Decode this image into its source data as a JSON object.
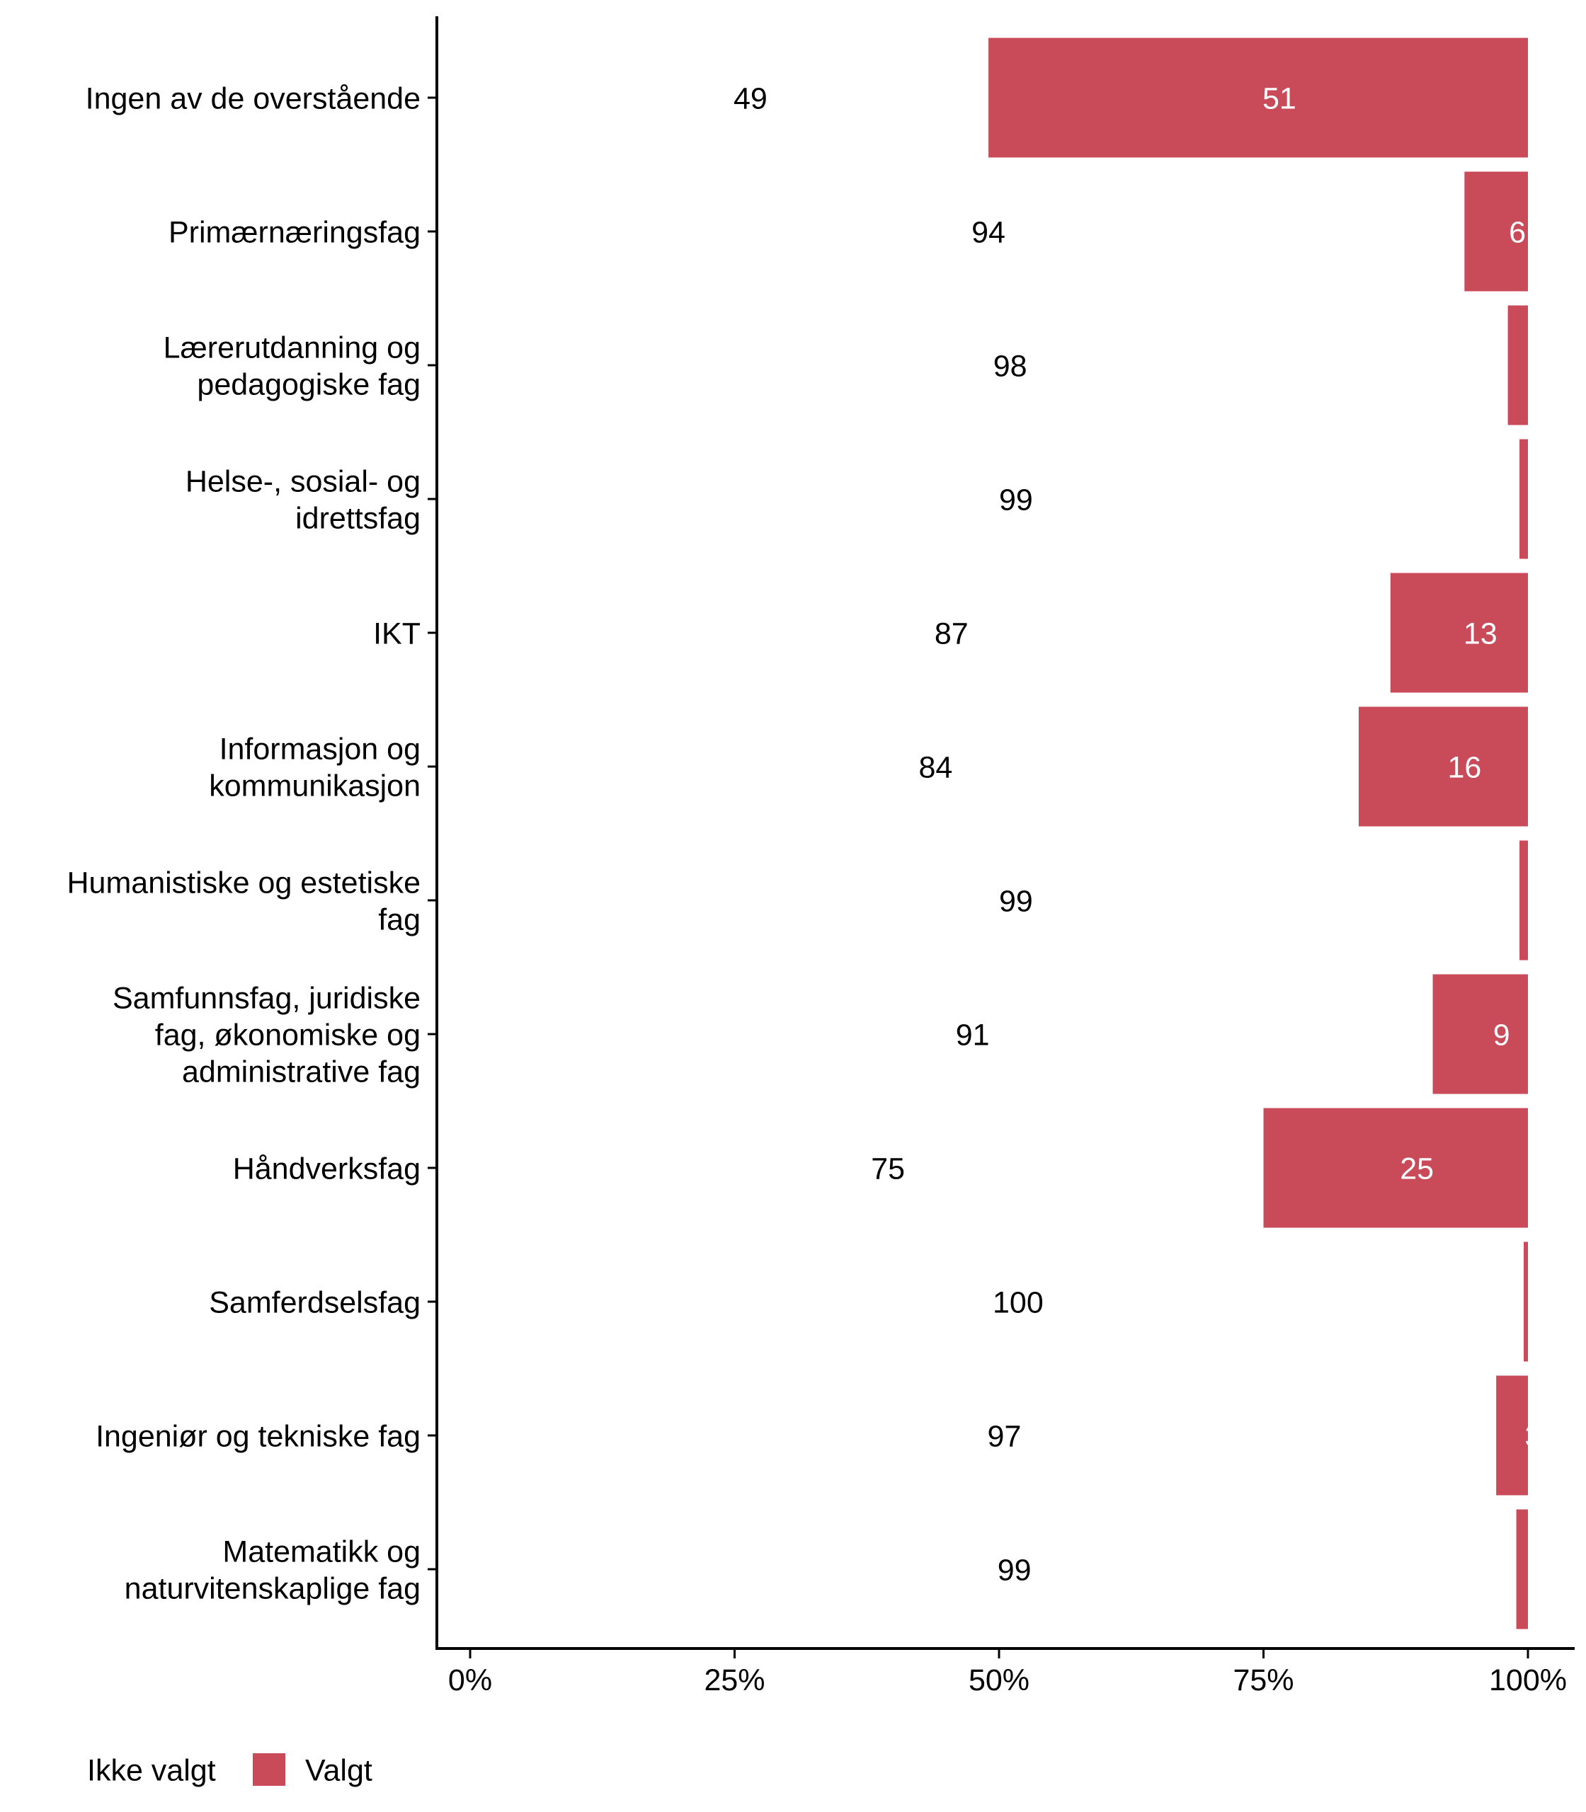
{
  "chart_data": {
    "type": "bar",
    "orientation": "horizontal",
    "stacked": true,
    "xlim": [
      0,
      100
    ],
    "x_ticks": [
      "0%",
      "25%",
      "50%",
      "75%",
      "100%"
    ],
    "categories": [
      [
        "Ingen av de overstående"
      ],
      [
        "Primærnæringsfag"
      ],
      [
        "Lærerutdanning og",
        "pedagogiske fag"
      ],
      [
        "Helse-, sosial- og",
        "idrettsfag"
      ],
      [
        "IKT"
      ],
      [
        "Informasjon og",
        "kommunikasjon"
      ],
      [
        "Humanistiske og estetiske",
        "fag"
      ],
      [
        "Samfunnsfag, juridiske",
        "fag, økonomiske og",
        "administrative fag"
      ],
      [
        "Håndverksfag"
      ],
      [
        "Samferdselsfag"
      ],
      [
        "Ingeniør og tekniske fag"
      ],
      [
        "Matematikk og",
        "naturvitenskaplige fag"
      ]
    ],
    "series": [
      {
        "name": "Ikke valgt",
        "color": "#ffffff",
        "values": [
          49,
          94,
          98.1,
          99.2,
          87,
          84,
          99.2,
          91,
          75,
          99.6,
          97,
          98.9
        ]
      },
      {
        "name": "Valgt",
        "color": "#c94b5a",
        "values": [
          51,
          6,
          1.9,
          0.8,
          13,
          16,
          0.8,
          9,
          25,
          0.4,
          3,
          1.1
        ]
      }
    ],
    "legend_position": "bottom-left",
    "grid": false
  }
}
